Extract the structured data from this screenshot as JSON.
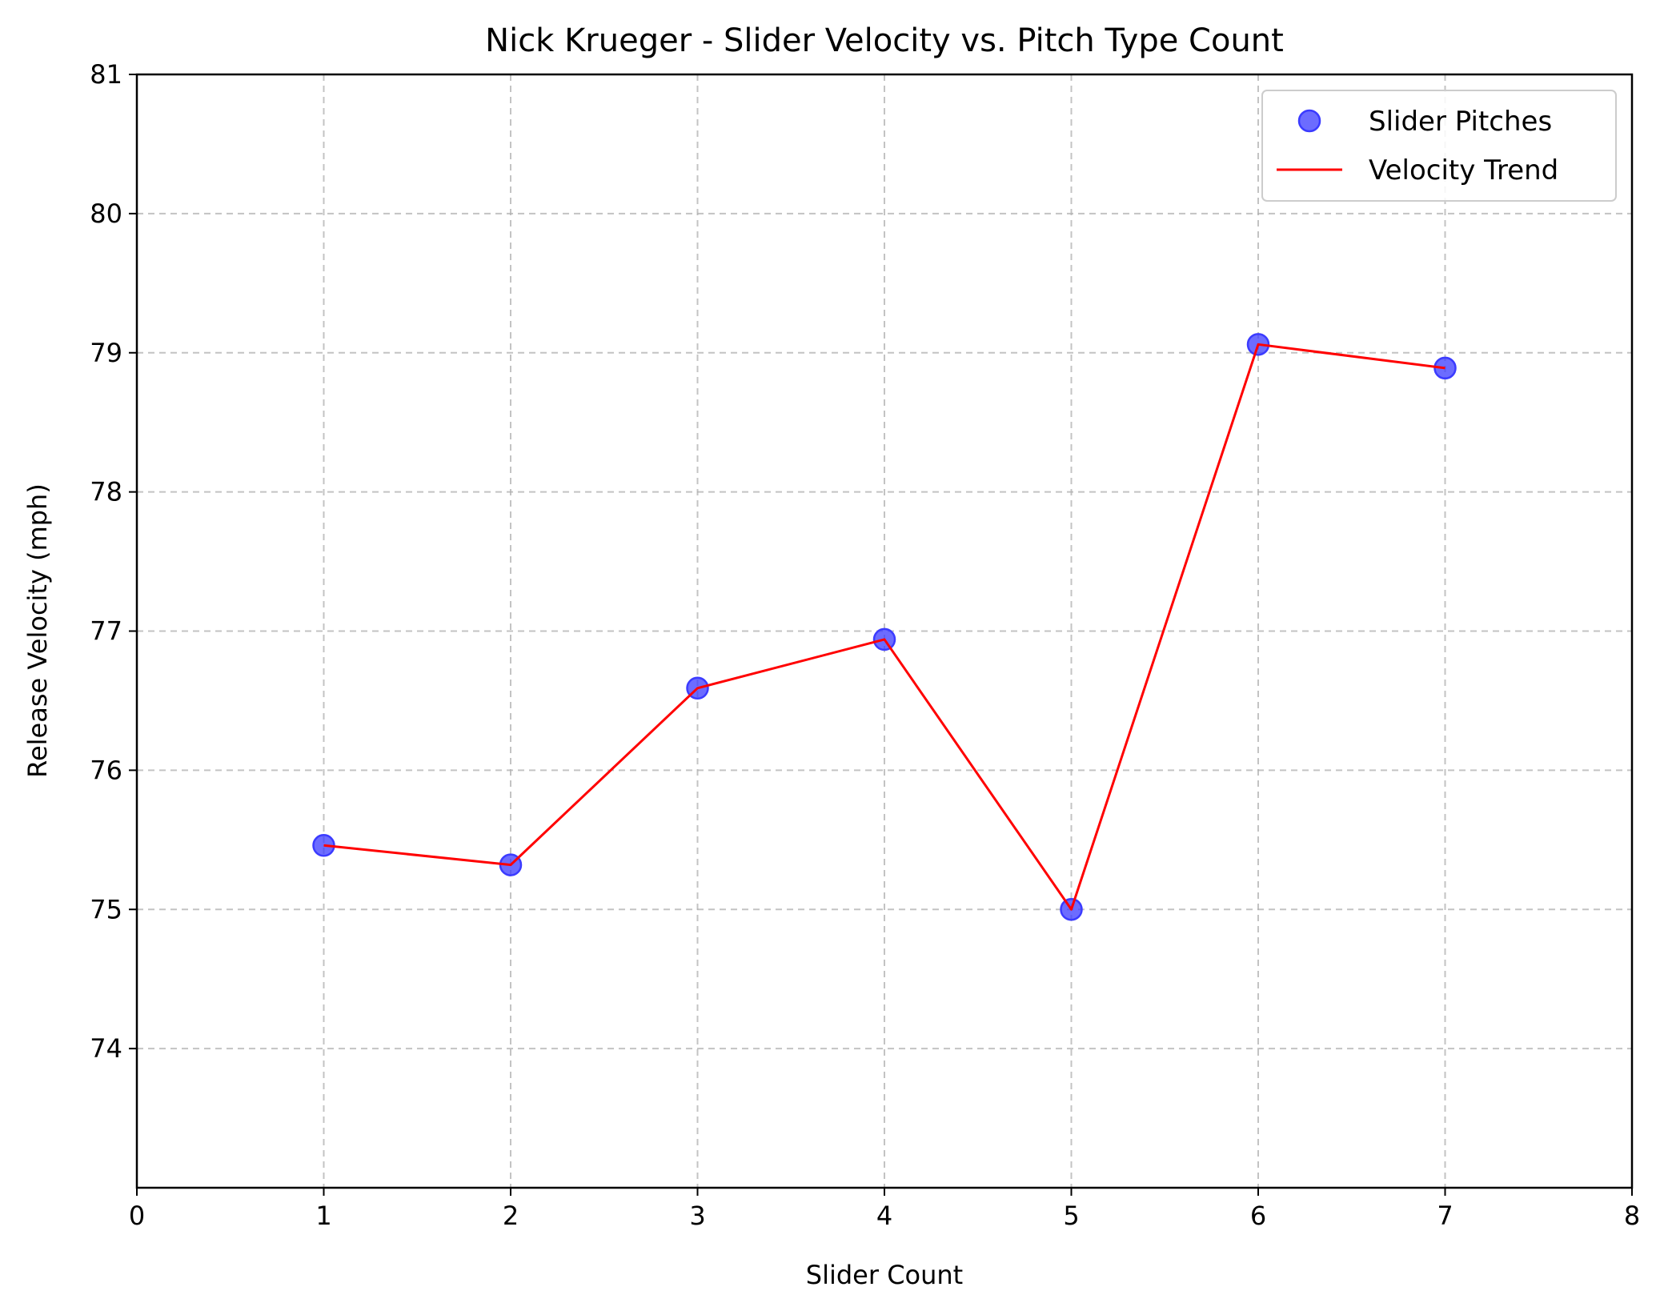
{
  "chart_data": {
    "type": "scatter",
    "title": "Nick Krueger - Slider Velocity vs. Pitch Type Count",
    "xlabel": "Slider Count",
    "ylabel": "Release Velocity (mph)",
    "xlim": [
      0,
      8
    ],
    "ylim": [
      73,
      81
    ],
    "x_ticks": [
      "0",
      "1",
      "2",
      "3",
      "4",
      "5",
      "6",
      "7",
      "8"
    ],
    "y_ticks": [
      "74",
      "75",
      "76",
      "77",
      "78",
      "79",
      "80",
      "81"
    ],
    "grid": true,
    "legend_position": "top-right",
    "series": [
      {
        "name": "Slider Pitches",
        "kind": "scatter",
        "color": "#3b3bff",
        "x": [
          1,
          2,
          3,
          4,
          5,
          6,
          7
        ],
        "y": [
          75.46,
          75.32,
          76.59,
          76.94,
          75.0,
          79.06,
          78.89
        ]
      },
      {
        "name": "Velocity Trend",
        "kind": "line",
        "color": "#ff0000",
        "x": [
          1,
          2,
          3,
          4,
          5,
          6,
          7
        ],
        "y": [
          75.46,
          75.32,
          76.59,
          76.94,
          75.0,
          79.06,
          78.89
        ]
      }
    ]
  }
}
